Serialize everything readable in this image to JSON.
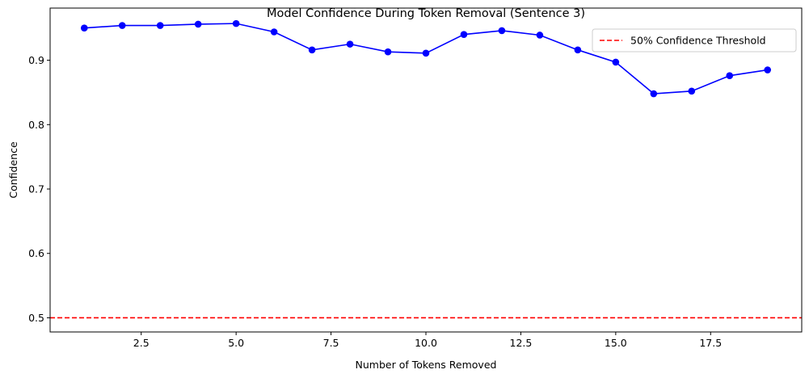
{
  "chart_data": {
    "type": "line",
    "title": "Model Confidence During Token Removal (Sentence 3)",
    "xlabel": "Number of Tokens Removed",
    "ylabel": "Confidence",
    "xlim": [
      0.1,
      19.9
    ],
    "ylim": [
      0.478,
      0.981
    ],
    "xticks": [
      2.5,
      5.0,
      7.5,
      10.0,
      12.5,
      15.0,
      17.5
    ],
    "xtick_labels": [
      "2.5",
      "5.0",
      "7.5",
      "10.0",
      "12.5",
      "15.0",
      "17.5"
    ],
    "yticks": [
      0.5,
      0.6,
      0.7,
      0.8,
      0.9
    ],
    "ytick_labels": [
      "0.5",
      "0.6",
      "0.7",
      "0.8",
      "0.9"
    ],
    "grid": false,
    "legend_position": "top-right",
    "series": [
      {
        "name": "",
        "color": "#0000ff",
        "marker": "circle",
        "x": [
          1,
          2,
          3,
          4,
          5,
          6,
          7,
          8,
          9,
          10,
          11,
          12,
          13,
          14,
          15,
          16,
          17,
          18,
          19
        ],
        "y": [
          0.95,
          0.954,
          0.954,
          0.956,
          0.957,
          0.944,
          0.916,
          0.925,
          0.913,
          0.911,
          0.94,
          0.946,
          0.939,
          0.916,
          0.897,
          0.848,
          0.852,
          0.876,
          0.885
        ]
      }
    ],
    "reference_lines": [
      {
        "orientation": "horizontal",
        "y": 0.5,
        "color": "#ff0000",
        "style": "dashed",
        "label": "50% Confidence Threshold"
      }
    ]
  }
}
